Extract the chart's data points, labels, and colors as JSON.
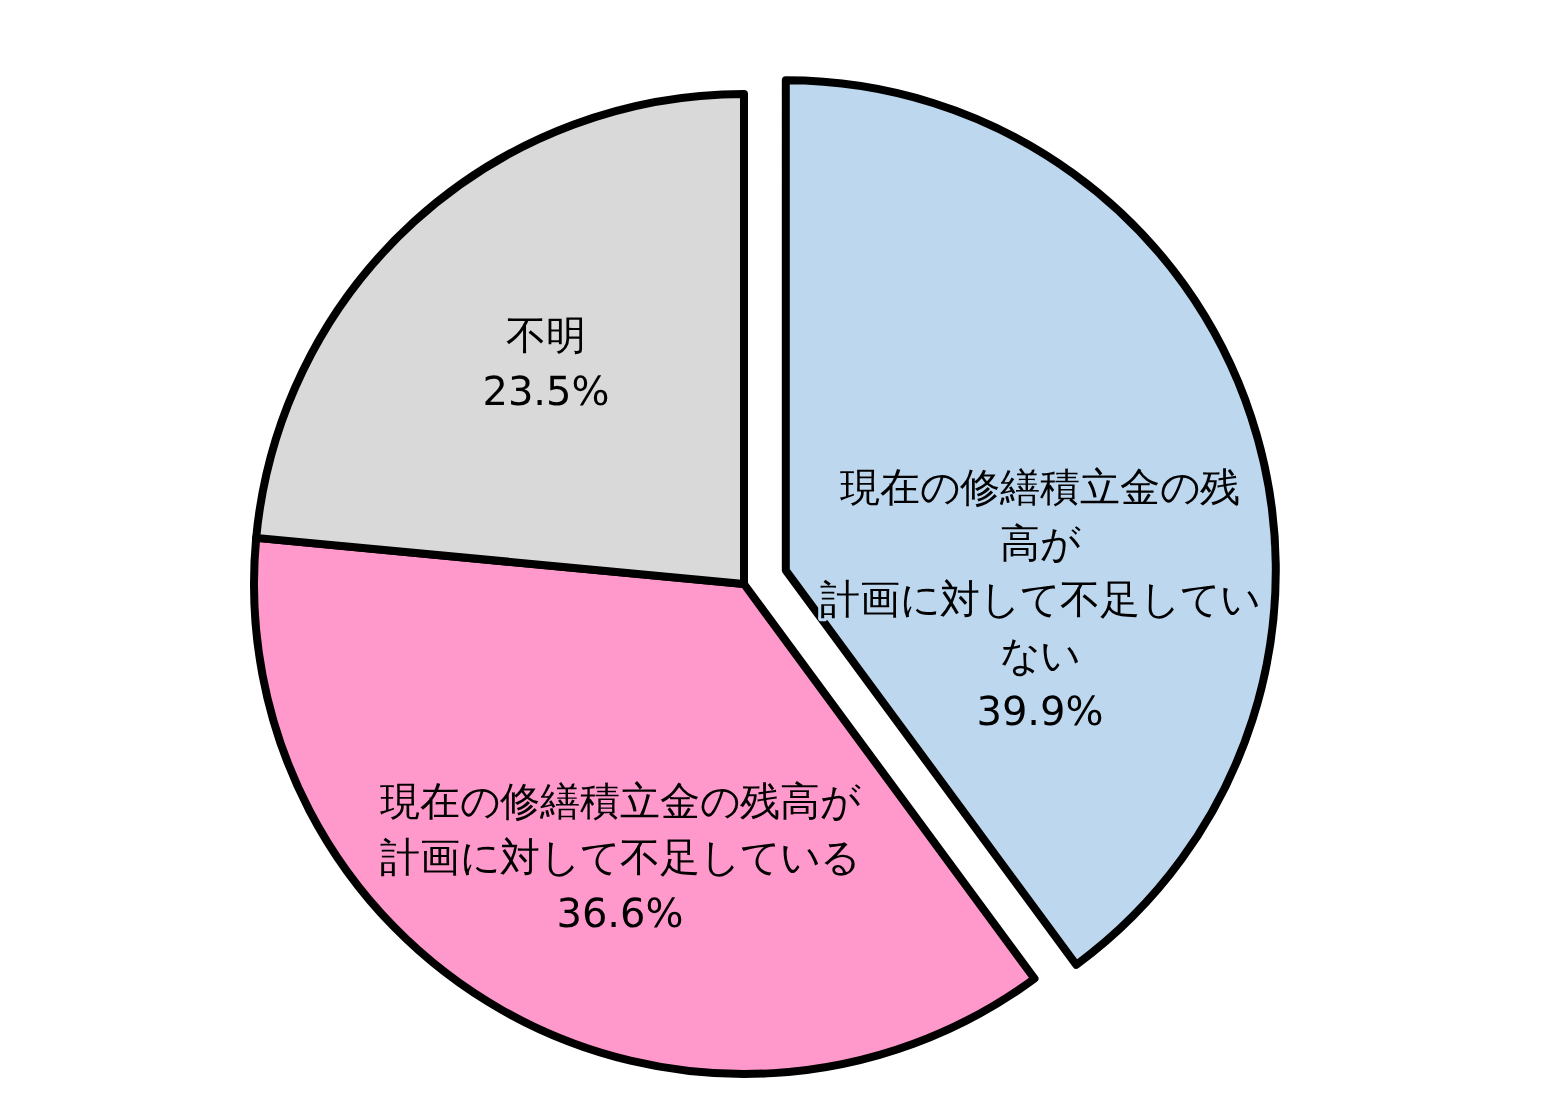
{
  "chart_data": {
    "type": "pie",
    "categories": [
      "現在の修繕積立金の残高が計画に対して不足していない",
      "現在の修繕積立金の残高が計画に対して不足している",
      "不明"
    ],
    "values": [
      39.9,
      36.6,
      23.5
    ],
    "colors": [
      "#bdd7ee",
      "#ff99cc",
      "#d9d9d9"
    ],
    "value_labels": [
      "39.9%",
      "36.6%",
      "23.5%"
    ]
  }
}
